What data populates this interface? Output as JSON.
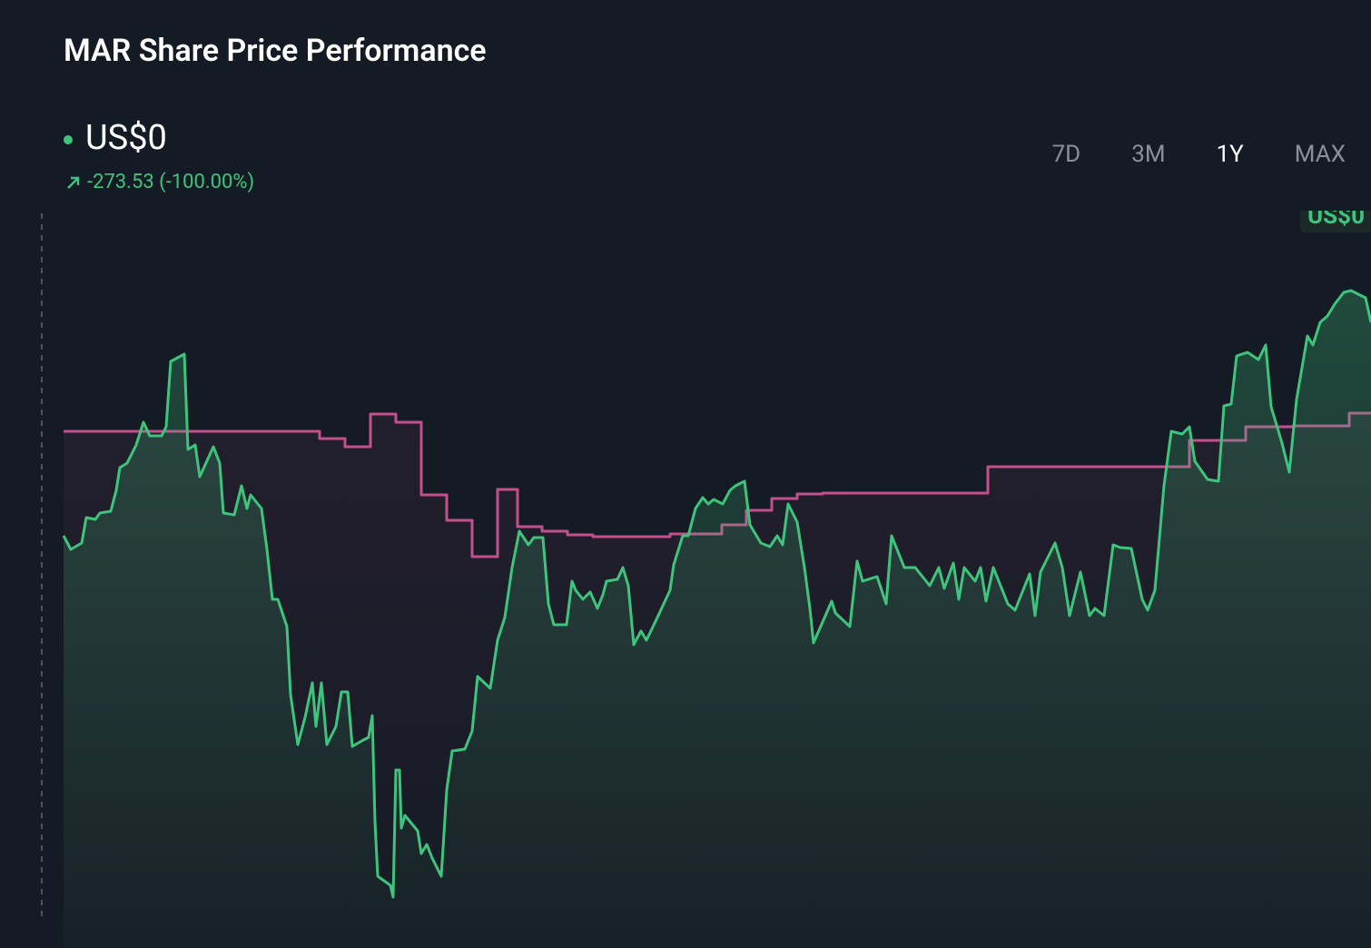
{
  "header": {
    "title": "MAR Share Price Performance",
    "price": "US$0",
    "change": "-273.53 (-100.00%)"
  },
  "range_buttons": [
    "7D",
    "3M",
    "1Y",
    "MAX"
  ],
  "active_range": "1Y",
  "chart_data": {
    "type": "line",
    "xlim": [
      0,
      1440
    ],
    "ylim": [
      0,
      775
    ],
    "end_label": "US$0",
    "series": [
      {
        "color": "#3ec47c",
        "x": [
          0,
          8,
          20,
          25,
          35,
          40,
          52,
          58,
          62,
          70,
          80,
          88,
          95,
          108,
          113,
          118,
          133,
          137,
          145,
          150,
          165,
          172,
          176,
          188,
          196,
          202,
          206,
          218,
          224,
          230,
          236,
          246,
          250,
          258,
          266,
          274,
          278,
          284,
          290,
          300,
          306,
          313,
          318,
          330,
          336,
          340,
          343,
          346,
          360,
          363,
          366,
          370,
          372,
          376,
          390,
          394,
          400,
          406,
          416,
          422,
          428,
          442,
          450,
          456,
          470,
          478,
          486,
          494,
          502,
          512,
          518,
          528,
          534,
          540,
          554,
          560,
          564,
          572,
          580,
          588,
          594,
          598,
          610,
          616,
          622,
          628,
          636,
          642,
          654,
          668,
          672,
          682,
          688,
          696,
          704,
          710,
          716,
          726,
          734,
          740,
          750,
          756,
          768,
          778,
          786,
          792,
          798,
          808,
          816,
          822,
          826,
          836,
          846,
          850,
          866,
          874,
          880,
          896,
          906,
          912,
          926,
          938,
          954,
          964,
          970,
          980,
          986,
          992,
          1004,
          1010,
          1016,
          1024,
          1040,
          1048,
          1064,
          1070,
          1076,
          1092,
          1100,
          1108,
          1120,
          1130,
          1136,
          1146,
          1156,
          1164,
          1176,
          1188,
          1194,
          1202,
          1212,
          1220,
          1232,
          1240,
          1246,
          1260,
          1272,
          1278,
          1286,
          1292,
          1304,
          1316,
          1324,
          1330,
          1342,
          1350,
          1358,
          1370,
          1376,
          1384,
          1392,
          1400,
          1410,
          1418,
          1434,
          1440
        ],
        "values": [
          420,
          405,
          412,
          440,
          438,
          445,
          447,
          470,
          495,
          500,
          520,
          545,
          530,
          530,
          540,
          612,
          620,
          515,
          520,
          485,
          518,
          500,
          445,
          443,
          475,
          450,
          465,
          450,
          405,
          350,
          350,
          320,
          245,
          190,
          220,
          258,
          210,
          258,
          190,
          210,
          248,
          248,
          188,
          195,
          198,
          222,
          105,
          45,
          35,
          22,
          162,
          162,
          98,
          112,
          95,
          70,
          80,
          65,
          45,
          140,
          183,
          185,
          205,
          265,
          252,
          305,
          330,
          385,
          425,
          410,
          418,
          418,
          345,
          322,
          322,
          370,
          360,
          350,
          358,
          340,
          355,
          370,
          372,
          385,
          365,
          300,
          315,
          305,
          330,
          360,
          388,
          420,
          420,
          450,
          462,
          455,
          460,
          455,
          470,
          475,
          480,
          432,
          412,
          408,
          420,
          410,
          455,
          435,
          385,
          340,
          302,
          325,
          348,
          335,
          320,
          392,
          370,
          375,
          345,
          420,
          385,
          385,
          365,
          385,
          362,
          390,
          350,
          385,
          370,
          385,
          348,
          385,
          345,
          338,
          378,
          332,
          380,
          412,
          385,
          332,
          380,
          332,
          340,
          332,
          410,
          407,
          406,
          350,
          338,
          360,
          475,
          535,
          532,
          540,
          502,
          482,
          480,
          563,
          565,
          618,
          622,
          614,
          630,
          562,
          522,
          490,
          570,
          640,
          630,
          655,
          662,
          675,
          688,
          690,
          682,
          655
        ]
      },
      {
        "color": "#c2508f",
        "step": true,
        "x": [
          0,
          282,
          310,
          338,
          366,
          394,
          422,
          450,
          478,
          500,
          527,
          555,
          583,
          668,
          725,
          752,
          780,
          808,
          836,
          1018,
          1240,
          1302,
          1354,
          1416
        ],
        "values": [
          535,
          527,
          518,
          554,
          545,
          465,
          437,
          397,
          471,
          430,
          425,
          421,
          419,
          422,
          432,
          448,
          461,
          466,
          467,
          496,
          525,
          540,
          541,
          555
        ]
      }
    ]
  }
}
